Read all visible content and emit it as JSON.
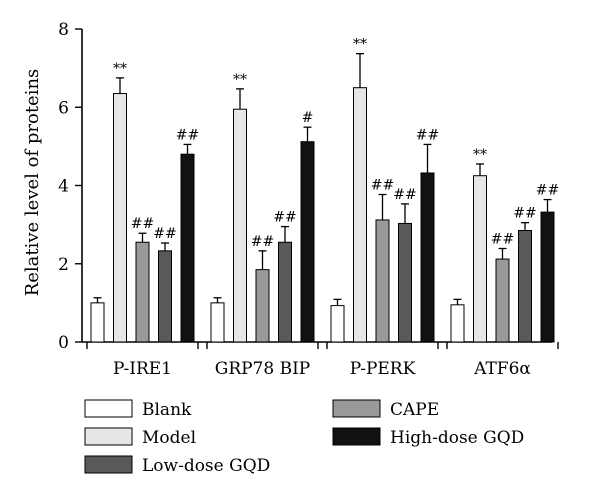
{
  "chart_data": {
    "type": "bar",
    "ylabel": "Relative level of proteins",
    "ylim": [
      0,
      8
    ],
    "yticks": [
      0,
      2,
      4,
      6,
      8
    ],
    "categories": [
      "P-IRE1",
      "GRP78 BIP",
      "P-PERK",
      "ATF6α"
    ],
    "series": [
      {
        "name": "Blank",
        "color": "#ffffff",
        "values": [
          1.0,
          1.0,
          0.93,
          0.95
        ],
        "errors": [
          0.13,
          0.13,
          0.16,
          0.14
        ],
        "annotations": [
          "",
          "",
          "",
          ""
        ]
      },
      {
        "name": "Model",
        "color": "#e6e6e6",
        "values": [
          6.35,
          5.95,
          6.5,
          4.25
        ],
        "errors": [
          0.4,
          0.52,
          0.87,
          0.3
        ],
        "annotations": [
          "**",
          "**",
          "**",
          "**"
        ]
      },
      {
        "name": "CAPE",
        "color": "#999999",
        "values": [
          2.55,
          1.85,
          3.12,
          2.12
        ],
        "errors": [
          0.23,
          0.48,
          0.65,
          0.27
        ],
        "annotations": [
          "##",
          "##",
          "##",
          "##"
        ]
      },
      {
        "name": "Low-dose GQD",
        "color": "#595959",
        "values": [
          2.33,
          2.55,
          3.03,
          2.85
        ],
        "errors": [
          0.2,
          0.4,
          0.5,
          0.2
        ],
        "annotations": [
          "##",
          "##",
          "##",
          "##"
        ]
      },
      {
        "name": "High-dose GQD",
        "color": "#111111",
        "values": [
          4.8,
          5.12,
          4.32,
          3.32
        ],
        "errors": [
          0.25,
          0.37,
          0.73,
          0.32
        ],
        "annotations": [
          "##",
          "#",
          "##",
          "##"
        ]
      }
    ],
    "legend_order": [
      "Blank",
      "CAPE",
      "Model",
      "High-dose GQD",
      "Low-dose GQD"
    ],
    "legend_placement": "bottom",
    "grid": false
  }
}
